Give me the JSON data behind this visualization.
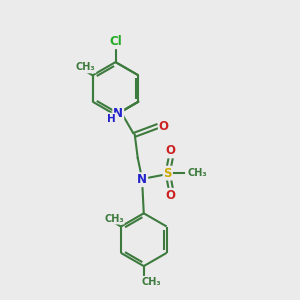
{
  "background_color": "#ebebeb",
  "bond_color": "#3d7a3d",
  "bond_width": 1.5,
  "atom_colors": {
    "Cl": "#22aa22",
    "N": "#2222cc",
    "O": "#cc2222",
    "S": "#ccaa00",
    "C": "#3d7a3d",
    "H": "#2222cc"
  },
  "font_size": 8.5,
  "fig_width": 3.0,
  "fig_height": 3.0,
  "dpi": 100,
  "xlim": [
    0,
    10
  ],
  "ylim": [
    0,
    10
  ]
}
